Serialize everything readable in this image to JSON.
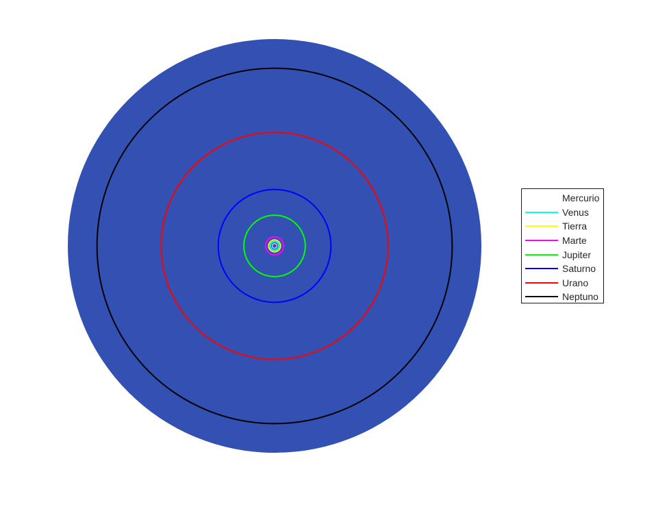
{
  "chart_data": {
    "type": "line",
    "title": "",
    "xlabel": "",
    "ylabel": "",
    "axes_visible": false,
    "background_disc": {
      "color": "#3350b3",
      "radius": 35
    },
    "series": [
      {
        "name": "Mercurio",
        "color": "#ffffff",
        "radius": 0.39
      },
      {
        "name": "Venus",
        "color": "#00ffff",
        "radius": 0.72
      },
      {
        "name": "Tierra",
        "color": "#ffff00",
        "radius": 1.0
      },
      {
        "name": "Marte",
        "color": "#ff00ff",
        "radius": 1.52
      },
      {
        "name": "Jupiter",
        "color": "#00ff00",
        "radius": 5.2
      },
      {
        "name": "Saturno",
        "color": "#0000ff",
        "radius": 9.54
      },
      {
        "name": "Urano",
        "color": "#ff0000",
        "radius": 19.2
      },
      {
        "name": "Neptuno",
        "color": "#000000",
        "radius": 30.06
      }
    ],
    "legend": {
      "position": "right"
    }
  }
}
